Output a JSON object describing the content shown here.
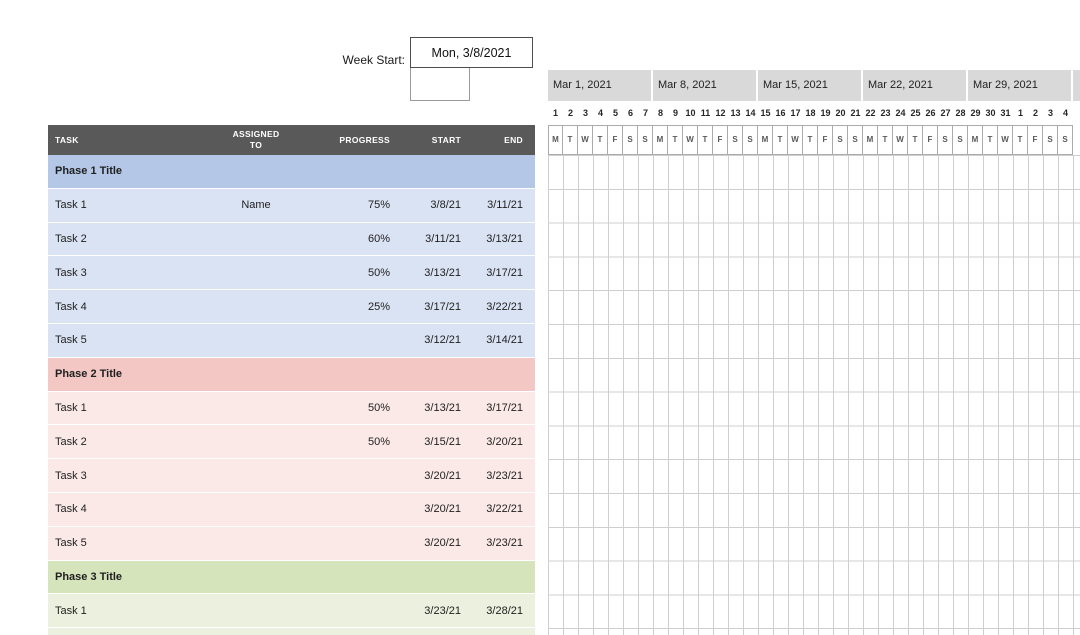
{
  "week_start": {
    "label": "Week Start:",
    "value": "Mon, 3/8/2021"
  },
  "colors": {
    "header_bg": "#595959",
    "calendar_header_bg": "#d9d9d9",
    "phase1": "#b4c7e7",
    "phase1_task": "#dae3f3",
    "phase2": "#f2c7c4",
    "phase2_task": "#fae9e7",
    "phase3": "#d6e4bc",
    "phase3_task": "#ebf1de"
  },
  "table": {
    "headers": [
      "TASK",
      "ASSIGNED TO",
      "PROGRESS",
      "START",
      "END"
    ],
    "rows": [
      {
        "type": "phase",
        "group": "phase1",
        "task": "Phase 1 Title",
        "assigned": "",
        "progress": "",
        "start": "",
        "end": ""
      },
      {
        "type": "task",
        "group": "phase1",
        "task": "Task 1",
        "assigned": "Name",
        "progress": "75%",
        "start": "3/8/21",
        "end": "3/11/21"
      },
      {
        "type": "task",
        "group": "phase1",
        "task": "Task 2",
        "assigned": "",
        "progress": "60%",
        "start": "3/11/21",
        "end": "3/13/21"
      },
      {
        "type": "task",
        "group": "phase1",
        "task": "Task 3",
        "assigned": "",
        "progress": "50%",
        "start": "3/13/21",
        "end": "3/17/21"
      },
      {
        "type": "task",
        "group": "phase1",
        "task": "Task 4",
        "assigned": "",
        "progress": "25%",
        "start": "3/17/21",
        "end": "3/22/21"
      },
      {
        "type": "task",
        "group": "phase1",
        "task": "Task 5",
        "assigned": "",
        "progress": "",
        "start": "3/12/21",
        "end": "3/14/21"
      },
      {
        "type": "phase",
        "group": "phase2",
        "task": "Phase 2 Title",
        "assigned": "",
        "progress": "",
        "start": "",
        "end": ""
      },
      {
        "type": "task",
        "group": "phase2",
        "task": "Task 1",
        "assigned": "",
        "progress": "50%",
        "start": "3/13/21",
        "end": "3/17/21"
      },
      {
        "type": "task",
        "group": "phase2",
        "task": "Task 2",
        "assigned": "",
        "progress": "50%",
        "start": "3/15/21",
        "end": "3/20/21"
      },
      {
        "type": "task",
        "group": "phase2",
        "task": "Task 3",
        "assigned": "",
        "progress": "",
        "start": "3/20/21",
        "end": "3/23/21"
      },
      {
        "type": "task",
        "group": "phase2",
        "task": "Task 4",
        "assigned": "",
        "progress": "",
        "start": "3/20/21",
        "end": "3/22/21"
      },
      {
        "type": "task",
        "group": "phase2",
        "task": "Task 5",
        "assigned": "",
        "progress": "",
        "start": "3/20/21",
        "end": "3/23/21"
      },
      {
        "type": "phase",
        "group": "phase3",
        "task": "Phase 3 Title",
        "assigned": "",
        "progress": "",
        "start": "",
        "end": ""
      },
      {
        "type": "task",
        "group": "phase3",
        "task": "Task 1",
        "assigned": "",
        "progress": "",
        "start": "3/23/21",
        "end": "3/28/21"
      },
      {
        "type": "task",
        "group": "phase3",
        "task": "",
        "assigned": "",
        "progress": "",
        "start": "",
        "end": ""
      }
    ]
  },
  "calendar": {
    "weeks": [
      {
        "label": "Mar 1, 2021",
        "days": [
          "1",
          "2",
          "3",
          "4",
          "5",
          "6",
          "7"
        ]
      },
      {
        "label": "Mar 8, 2021",
        "days": [
          "8",
          "9",
          "10",
          "11",
          "12",
          "13",
          "14"
        ]
      },
      {
        "label": "Mar 15, 2021",
        "days": [
          "15",
          "16",
          "17",
          "18",
          "19",
          "20",
          "21"
        ]
      },
      {
        "label": "Mar 22, 2021",
        "days": [
          "22",
          "23",
          "24",
          "25",
          "26",
          "27",
          "28"
        ]
      },
      {
        "label": "Mar 29, 2021",
        "days": [
          "29",
          "30",
          "31",
          "1",
          "2",
          "3",
          "4"
        ]
      }
    ],
    "day_letters": [
      "M",
      "T",
      "W",
      "T",
      "F",
      "S",
      "S"
    ]
  }
}
